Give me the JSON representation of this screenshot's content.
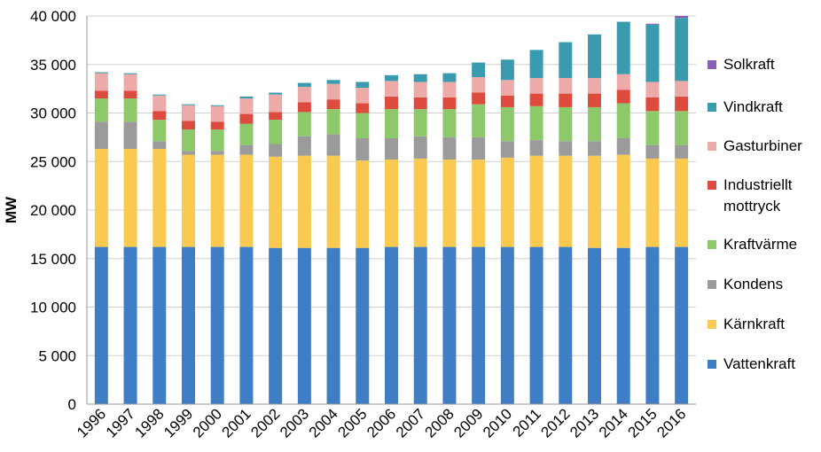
{
  "chart_data": {
    "type": "bar",
    "stacked": true,
    "title": "",
    "xlabel": "",
    "ylabel": "MW",
    "ylim": [
      0,
      40000
    ],
    "yticks": [
      0,
      5000,
      10000,
      15000,
      20000,
      25000,
      30000,
      35000,
      40000
    ],
    "ytick_labels": [
      "0",
      "5 000",
      "10 000",
      "15 000",
      "20 000",
      "25 000",
      "30 000",
      "35 000",
      "40 000"
    ],
    "grid": "horizontal",
    "legend_position": "right",
    "categories": [
      "1996",
      "1997",
      "1998",
      "1999",
      "2000",
      "2001",
      "2002",
      "2003",
      "2004",
      "2005",
      "2006",
      "2007",
      "2008",
      "2009",
      "2010",
      "2011",
      "2012",
      "2013",
      "2014",
      "2015",
      "2016"
    ],
    "series": [
      {
        "name": "Vattenkraft",
        "color": "#3f7dc4",
        "values": [
          16200,
          16200,
          16200,
          16200,
          16200,
          16200,
          16100,
          16100,
          16100,
          16100,
          16200,
          16200,
          16200,
          16200,
          16200,
          16200,
          16200,
          16100,
          16100,
          16200,
          16200
        ]
      },
      {
        "name": "Kärnkraft",
        "color": "#f9c950",
        "values": [
          10100,
          10100,
          10100,
          9500,
          9500,
          9500,
          9400,
          9500,
          9500,
          9000,
          9000,
          9100,
          9000,
          9000,
          9200,
          9400,
          9400,
          9500,
          9600,
          9100,
          9100
        ]
      },
      {
        "name": "Kondens",
        "color": "#9b9b9b",
        "values": [
          2800,
          2800,
          800,
          400,
          400,
          1000,
          1300,
          2000,
          2200,
          2300,
          2200,
          2300,
          2300,
          2300,
          1700,
          1600,
          1500,
          1500,
          1700,
          1400,
          1400
        ]
      },
      {
        "name": "Kraftvärme",
        "color": "#8dc96b",
        "values": [
          2400,
          2400,
          2200,
          2200,
          2200,
          2200,
          2500,
          2500,
          2600,
          2600,
          3000,
          2800,
          2900,
          3400,
          3500,
          3500,
          3500,
          3500,
          3600,
          3500,
          3500
        ]
      },
      {
        "name": "Industriellt mottryck",
        "color": "#dd4b3f",
        "values": [
          800,
          800,
          900,
          900,
          800,
          1000,
          800,
          1000,
          1000,
          1000,
          1300,
          1200,
          1200,
          1200,
          1200,
          1300,
          1400,
          1400,
          1400,
          1400,
          1500
        ]
      },
      {
        "name": "Gasturbiner",
        "color": "#ecaaa8",
        "values": [
          1800,
          1700,
          1600,
          1600,
          1600,
          1600,
          1800,
          1600,
          1600,
          1600,
          1600,
          1600,
          1600,
          1600,
          1600,
          1600,
          1600,
          1600,
          1600,
          1600,
          1600
        ]
      },
      {
        "name": "Vindkraft",
        "color": "#3a9bae",
        "values": [
          100,
          100,
          100,
          100,
          100,
          200,
          200,
          400,
          400,
          600,
          600,
          800,
          900,
          1500,
          2100,
          2900,
          3700,
          4500,
          5400,
          5900,
          6500
        ]
      },
      {
        "name": "Solkraft",
        "color": "#8a5fb3",
        "values": [
          0,
          0,
          0,
          0,
          0,
          0,
          0,
          0,
          0,
          0,
          0,
          0,
          0,
          0,
          0,
          0,
          0,
          0,
          0,
          100,
          200
        ]
      }
    ]
  }
}
